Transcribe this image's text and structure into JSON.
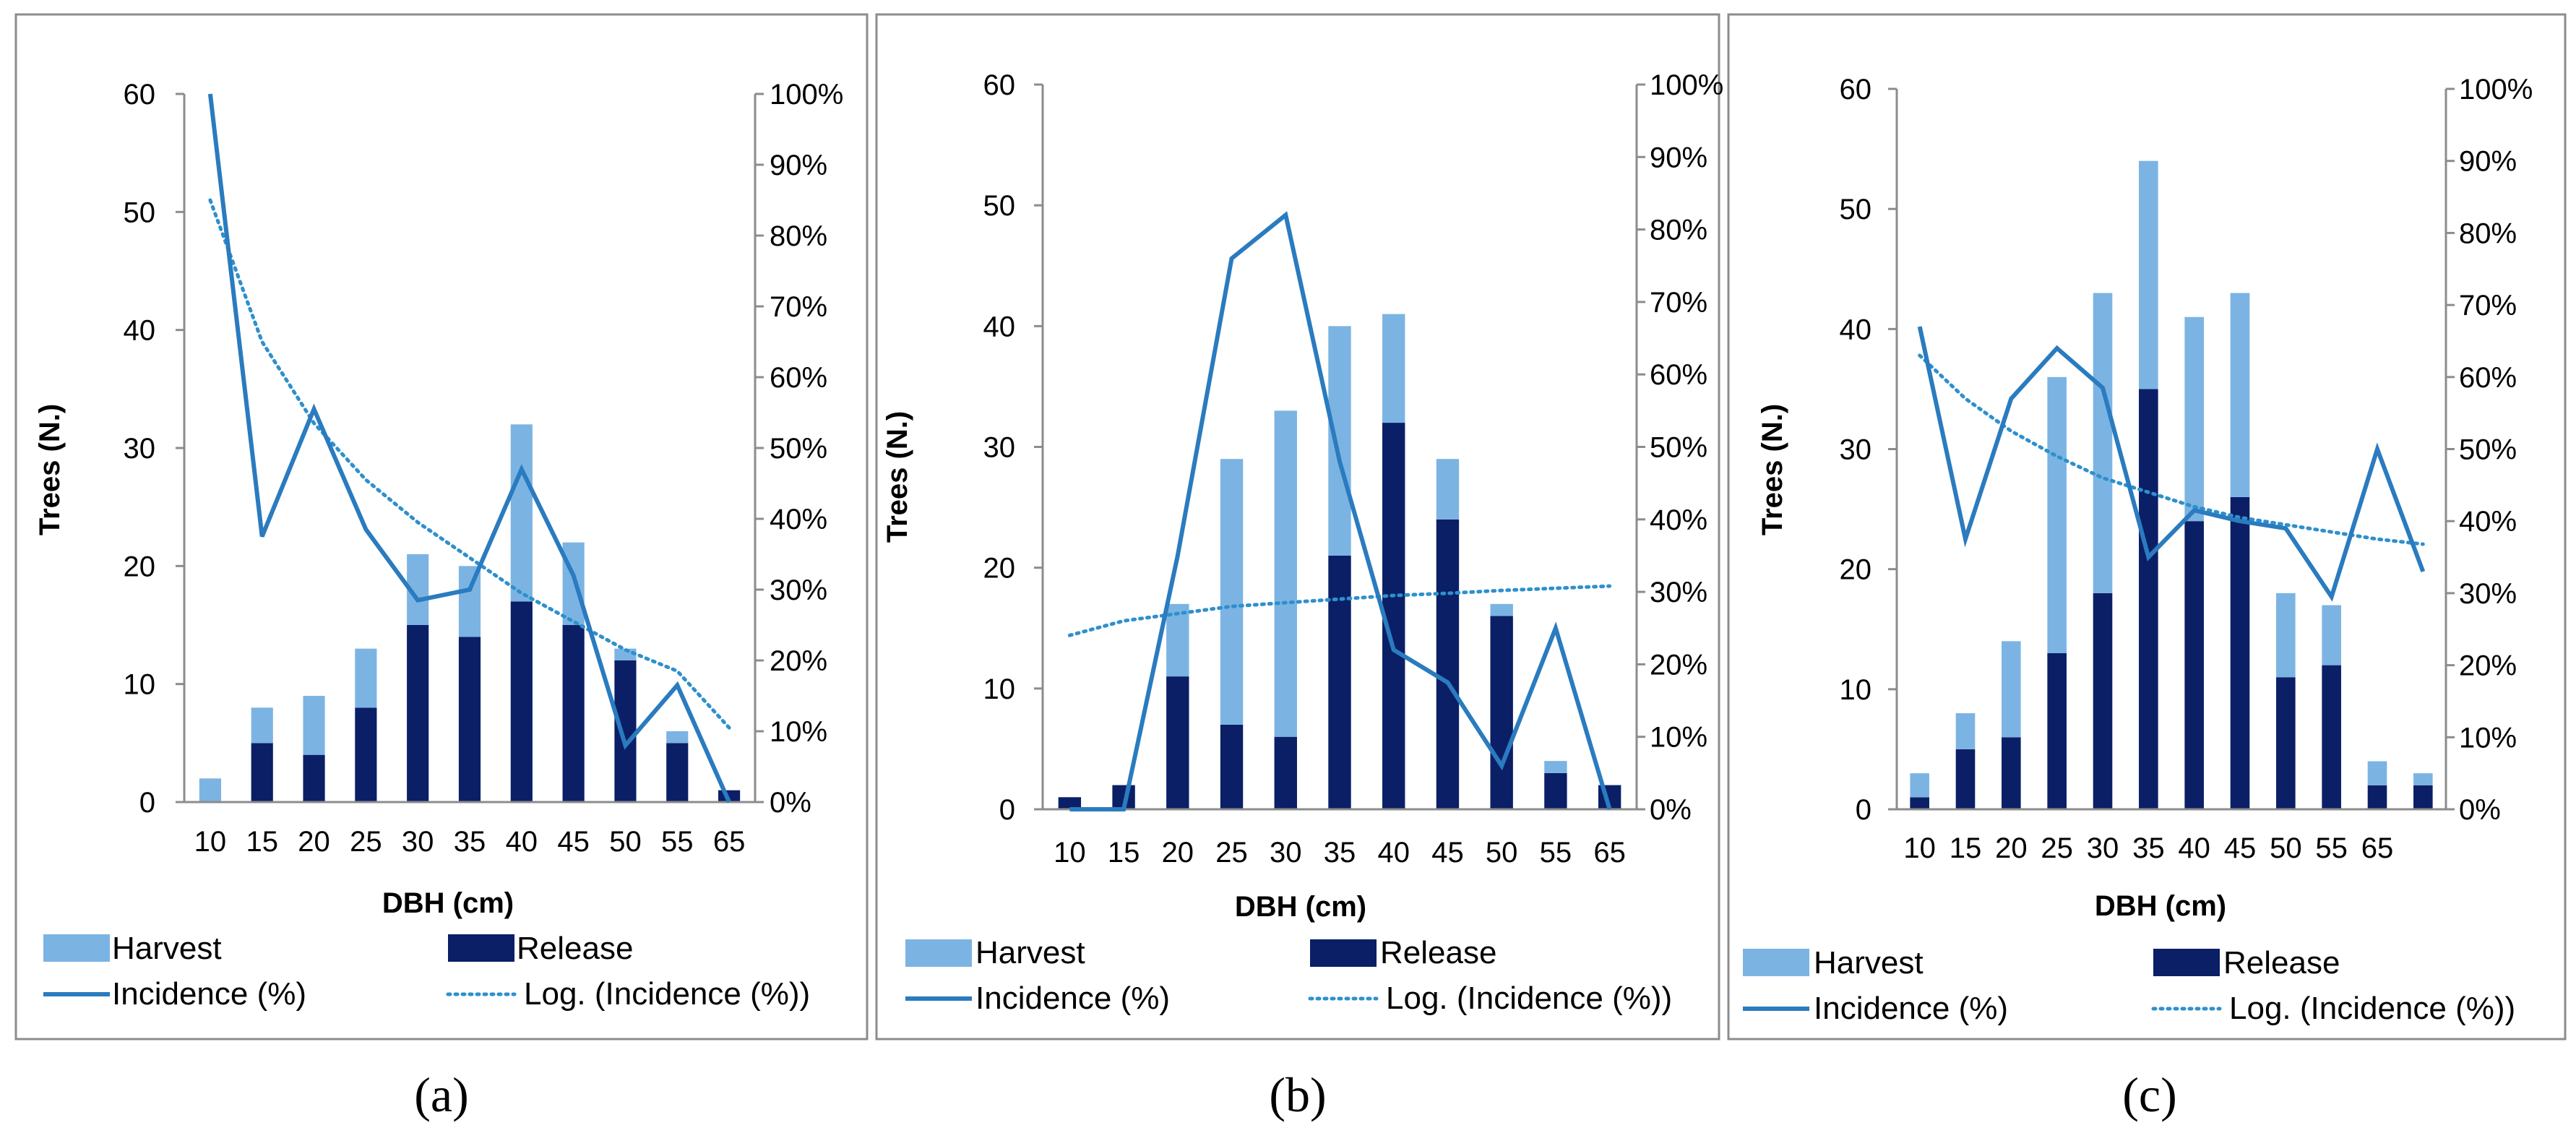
{
  "colors": {
    "harvest": "#7BB4E3",
    "release": "#0B1F66",
    "incidence": "#2A7BBF",
    "trend": "#2E90CC",
    "frame": "#8C8C8C",
    "axis": "#8C8C8C",
    "text": "#000000"
  },
  "legend": {
    "harvest": "Harvest",
    "release": "Release",
    "incidence": "Incidence (%)",
    "trend": "Log. (Incidence (%))"
  },
  "chart_data": [
    {
      "panel": "(a)",
      "type": "bar",
      "stacked": true,
      "xlabel": "DBH (cm)",
      "ylabel": "Trees (N.)",
      "ylim": [
        0,
        60
      ],
      "yticks": [
        0,
        10,
        20,
        30,
        40,
        50,
        60
      ],
      "y2lim": [
        0,
        100
      ],
      "y2ticks": [
        "0%",
        "10%",
        "20%",
        "30%",
        "40%",
        "50%",
        "60%",
        "70%",
        "80%",
        "90%",
        "100%"
      ],
      "categories": [
        "10",
        "15",
        "20",
        "25",
        "30",
        "35",
        "40",
        "45",
        "50",
        "55",
        "65"
      ],
      "series": [
        {
          "name": "Release",
          "values": [
            0,
            5,
            4,
            8,
            15,
            14,
            17,
            15,
            12,
            5,
            1
          ]
        },
        {
          "name": "Harvest",
          "values": [
            2,
            3,
            5,
            5,
            6,
            6,
            15,
            7,
            1,
            1,
            0
          ]
        },
        {
          "name": "Incidence (%)",
          "axis": "right",
          "values": [
            100,
            37.5,
            55.5,
            38.5,
            28.5,
            30,
            47,
            32,
            8,
            16.5,
            0
          ]
        },
        {
          "name": "Log. (Incidence (%))",
          "axis": "right",
          "values": [
            85,
            65,
            53.5,
            45.5,
            39.5,
            34.5,
            29.5,
            25.5,
            21.5,
            18.5,
            10.5
          ]
        }
      ]
    },
    {
      "panel": "(b)",
      "type": "bar",
      "stacked": true,
      "xlabel": "DBH (cm)",
      "ylabel": "Trees (N.)",
      "ylim": [
        0,
        60
      ],
      "yticks": [
        0,
        10,
        20,
        30,
        40,
        50,
        60
      ],
      "y2lim": [
        0,
        100
      ],
      "y2ticks": [
        "0%",
        "10%",
        "20%",
        "30%",
        "40%",
        "50%",
        "60%",
        "70%",
        "80%",
        "90%",
        "100%"
      ],
      "categories": [
        "10",
        "15",
        "20",
        "25",
        "30",
        "35",
        "40",
        "45",
        "50",
        "55",
        "65"
      ],
      "series": [
        {
          "name": "Release",
          "values": [
            1,
            2,
            11,
            7,
            6,
            21,
            32,
            24,
            16,
            3,
            2
          ]
        },
        {
          "name": "Harvest",
          "values": [
            0,
            0,
            6,
            22,
            27,
            19,
            9,
            5,
            1,
            1,
            0
          ]
        },
        {
          "name": "Incidence (%)",
          "axis": "right",
          "values": [
            0,
            0,
            35,
            76,
            82,
            48,
            22,
            17.5,
            6,
            25,
            0
          ]
        },
        {
          "name": "Log. (Incidence (%))",
          "axis": "right",
          "values": [
            24,
            26,
            27,
            28,
            28.5,
            29,
            29.5,
            29.8,
            30.2,
            30.5,
            30.8
          ]
        }
      ]
    },
    {
      "panel": "(c)",
      "type": "bar",
      "stacked": true,
      "xlabel": "DBH (cm)",
      "ylabel": "Trees (N.)",
      "ylim": [
        0,
        60
      ],
      "yticks": [
        0,
        10,
        20,
        30,
        40,
        50,
        60
      ],
      "y2lim": [
        0,
        100
      ],
      "y2ticks": [
        "0%",
        "10%",
        "20%",
        "30%",
        "40%",
        "50%",
        "60%",
        "70%",
        "80%",
        "90%",
        "100%"
      ],
      "categories": [
        "10",
        "15",
        "20",
        "25",
        "30",
        "35",
        "40",
        "45",
        "50",
        "55",
        "65",
        ""
      ],
      "series": [
        {
          "name": "Release",
          "values": [
            1,
            5,
            6,
            13,
            18,
            35,
            24,
            26,
            11,
            12,
            2,
            2
          ]
        },
        {
          "name": "Harvest",
          "values": [
            2,
            3,
            8,
            23,
            25,
            19,
            17,
            17,
            7,
            5,
            2,
            1
          ]
        },
        {
          "name": "Incidence (%)",
          "axis": "right",
          "values": [
            67,
            37.5,
            57,
            64,
            58.5,
            35,
            41.5,
            40,
            39,
            29.5,
            50,
            33
          ]
        },
        {
          "name": "Log. (Incidence (%))",
          "axis": "right",
          "values": [
            63,
            57,
            52.5,
            49,
            46,
            44,
            42,
            40.5,
            39.5,
            38.5,
            37.5,
            36.8
          ]
        }
      ]
    }
  ]
}
